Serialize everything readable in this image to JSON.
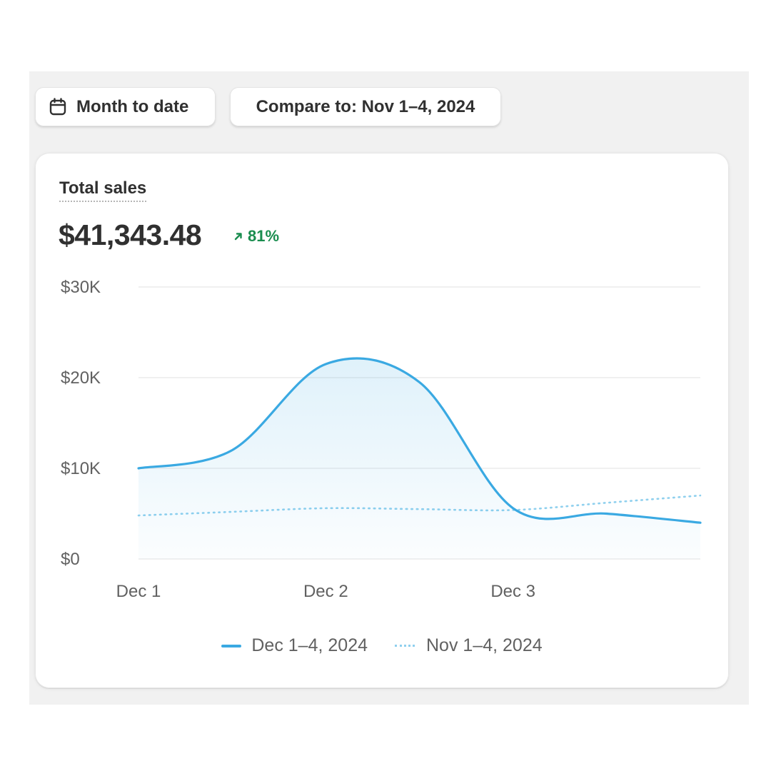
{
  "toolbar": {
    "date_range_label": "Month to date",
    "compare_label": "Compare to: Nov 1–4, 2024"
  },
  "card": {
    "title": "Total sales",
    "value": "$41,343.48",
    "change": "81%",
    "change_direction": "up",
    "change_color": "#1a8d4f"
  },
  "icons": {
    "date_range": "calendar-icon",
    "change": "arrow-up-right-icon"
  },
  "colors": {
    "current_series": "#3aa9e2",
    "comparison_series": "#8fd0ee",
    "gridline": "#ececec",
    "axis_text": "#616161"
  },
  "chart_data": {
    "type": "line",
    "title": "",
    "xlabel": "",
    "ylabel": "",
    "x": [
      "Dec 1",
      "Dec 1.5",
      "Dec 2",
      "Dec 2.5",
      "Dec 3",
      "Dec 3.5",
      "Dec 4"
    ],
    "x_tick_labels": [
      "Dec 1",
      "Dec 2",
      "Dec 3"
    ],
    "y_tick_labels": [
      "$0",
      "$10K",
      "$20K",
      "$30K"
    ],
    "ylim": [
      0,
      30000
    ],
    "grid": true,
    "legend_position": "bottom-center",
    "series": [
      {
        "name": "Dec 1–4, 2024",
        "style": "solid",
        "area_fill": true,
        "values": [
          10000,
          12000,
          21500,
          19500,
          5600,
          5000,
          4000
        ]
      },
      {
        "name": "Nov 1–4, 2024",
        "style": "dotted",
        "area_fill": false,
        "values": [
          4800,
          5200,
          5600,
          5500,
          5400,
          6200,
          7000
        ]
      }
    ]
  }
}
